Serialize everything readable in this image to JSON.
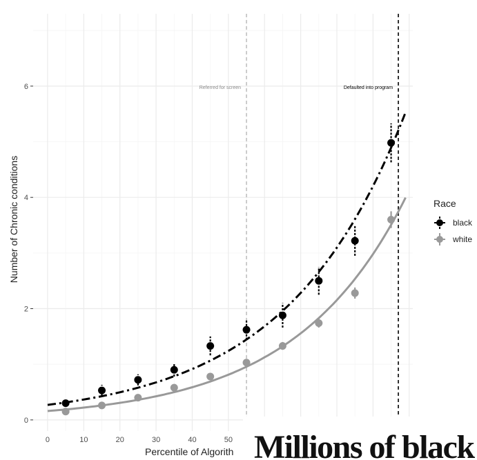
{
  "chart_data": {
    "type": "scatter",
    "xlabel": "Percentile of Algorith",
    "ylabel": "Number of Chronic conditions",
    "xlim": [
      -4,
      101
    ],
    "ylim": [
      -0.2,
      7.3
    ],
    "x_ticks": [
      0,
      10,
      20,
      30,
      40,
      50
    ],
    "y_ticks": [
      0,
      2,
      4,
      6
    ],
    "grid": true,
    "legend": {
      "title": "Race",
      "placement": "right"
    },
    "series": [
      {
        "name": "black",
        "color": "#000000",
        "x": [
          5,
          15,
          25,
          35,
          45,
          55,
          65,
          75,
          85,
          95
        ],
        "y": [
          0.3,
          0.53,
          0.72,
          0.9,
          1.33,
          1.62,
          1.88,
          2.5,
          3.22,
          4.98
        ],
        "err": [
          0.06,
          0.1,
          0.1,
          0.12,
          0.17,
          0.18,
          0.22,
          0.25,
          0.27,
          0.35
        ],
        "fit": {
          "style": "dashdot",
          "a": 0.27,
          "b": 0.0305
        }
      },
      {
        "name": "white",
        "color": "#999999",
        "x": [
          5,
          15,
          25,
          35,
          45,
          55,
          65,
          75,
          85,
          95
        ],
        "y": [
          0.15,
          0.26,
          0.4,
          0.58,
          0.78,
          1.03,
          1.33,
          1.74,
          2.28,
          3.6
        ],
        "err": [
          0.03,
          0.03,
          0.04,
          0.05,
          0.05,
          0.06,
          0.07,
          0.08,
          0.1,
          0.15
        ],
        "fit": {
          "style": "solid",
          "a": 0.16,
          "b": 0.0325
        }
      }
    ],
    "thresholds": [
      {
        "x": 55,
        "label": "Referred for screen",
        "style": "dashed",
        "color": "#aaaaaa"
      },
      {
        "x": 97,
        "label": "Defaulted into program",
        "style": "dashed",
        "color": "#000000"
      }
    ]
  },
  "headline": {
    "text": "Millions of black"
  }
}
